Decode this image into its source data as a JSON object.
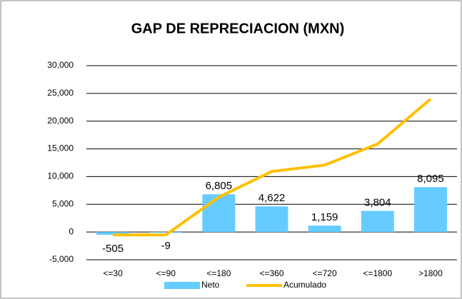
{
  "chart_data": {
    "type": "bar",
    "title": "GAP DE REPRECIACION (MXN)",
    "categories": [
      "<=30",
      "<=90",
      "<=180",
      "<=360",
      "<=720",
      "<=1800",
      ">1800"
    ],
    "series": [
      {
        "name": "Neto",
        "type": "bar",
        "color": "#66ccff",
        "values": [
          -505,
          -9,
          6805,
          4622,
          1159,
          3804,
          8095
        ],
        "value_labels": [
          "-505",
          "-9",
          "6,805",
          "4,622",
          "1,159",
          "3,804",
          "8,095"
        ]
      },
      {
        "name": "Acumulado",
        "type": "line",
        "color": "#ffc000",
        "values": [
          -505,
          -514,
          6291,
          10913,
          12072,
          15876,
          23971
        ]
      }
    ],
    "ylim": [
      -5000,
      30000
    ],
    "yticks": [
      {
        "value": -5000,
        "label": "-5,000"
      },
      0,
      {
        "value": 5000,
        "label": "5,000"
      },
      {
        "value": 10000,
        "label": "10,000"
      },
      {
        "value": 15000,
        "label": "15,000"
      },
      {
        "value": 20000,
        "label": "20,000"
      },
      {
        "value": 25000,
        "label": "25,000"
      },
      {
        "value": 30000,
        "label": "30,000"
      }
    ],
    "grid": true,
    "legend": "bottom"
  }
}
